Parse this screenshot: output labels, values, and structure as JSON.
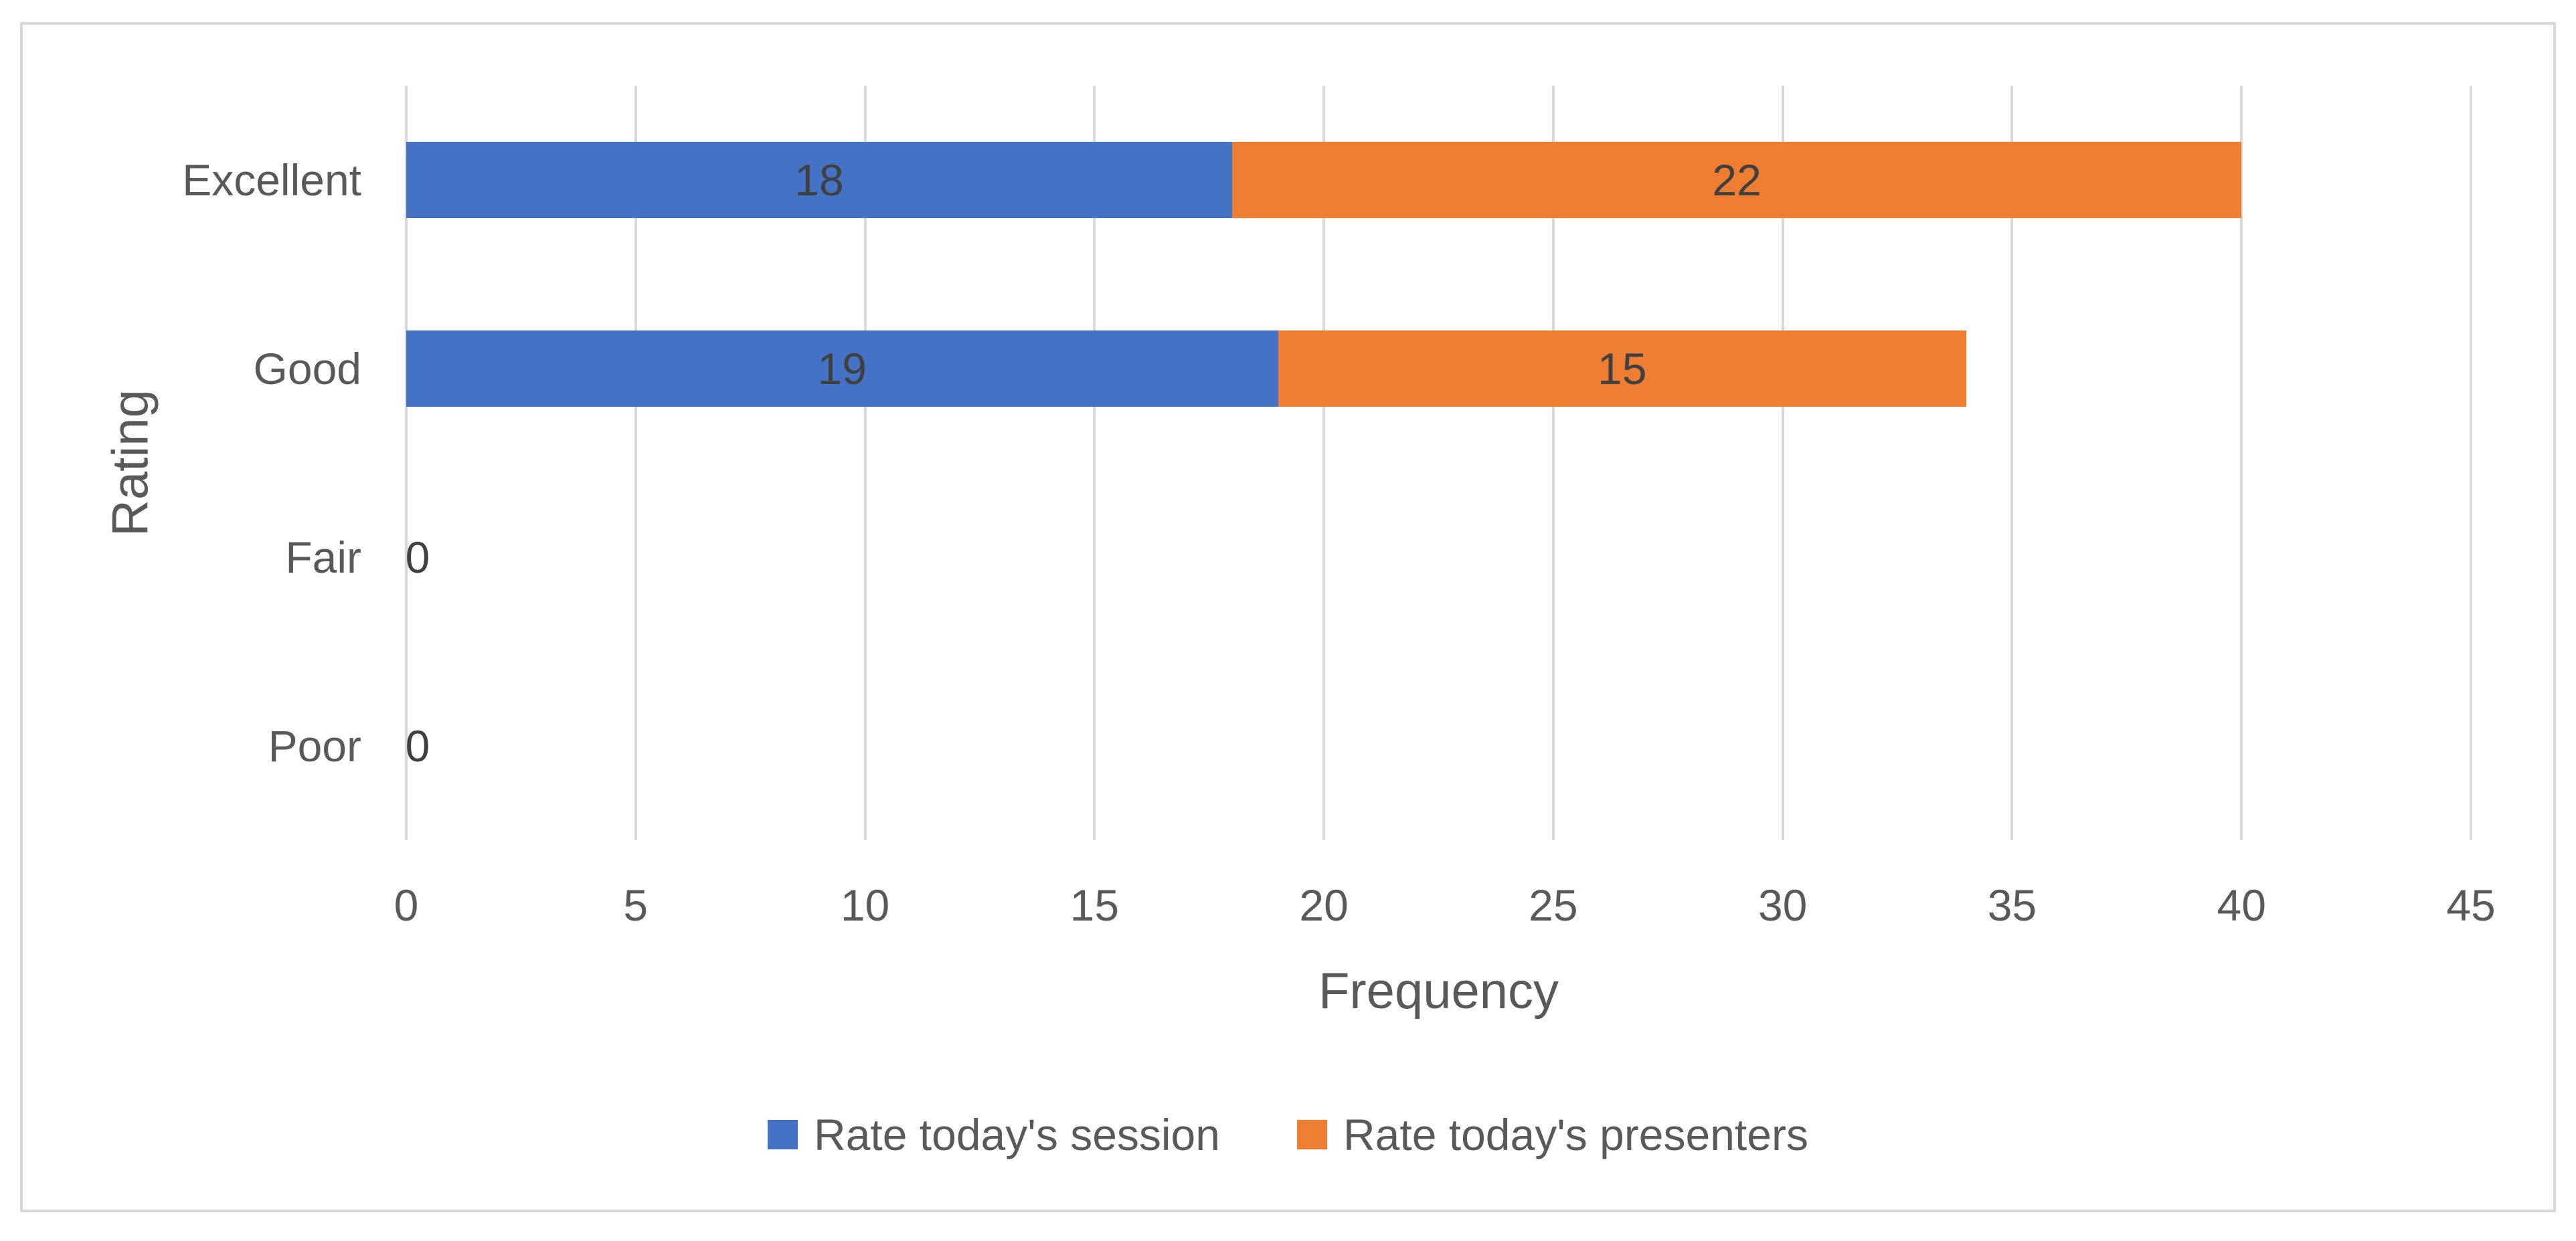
{
  "chart_data": {
    "type": "bar",
    "orientation": "horizontal",
    "stacked": true,
    "title": "",
    "xlabel": "Frequency",
    "ylabel": "Rating",
    "categories": [
      "Excellent",
      "Good",
      "Fair",
      "Poor"
    ],
    "series": [
      {
        "name": "Rate today's session",
        "color": "#4472C4",
        "values": [
          18,
          19,
          0,
          0
        ]
      },
      {
        "name": "Rate today's presenters",
        "color": "#ED7D31",
        "values": [
          22,
          15,
          0,
          0
        ]
      }
    ],
    "stack_totals": [
      40,
      34,
      0,
      0
    ],
    "data_labels_visible": true,
    "zero_value_label": "0",
    "xlim": [
      0,
      45
    ],
    "xticks": [
      0,
      5,
      10,
      15,
      20,
      25,
      30,
      35,
      40,
      45
    ],
    "grid": true,
    "legend_position": "bottom"
  },
  "colors": {
    "gridline": "#D9D9D9",
    "chart_border": "#D9D9D9",
    "axis_text": "#595959",
    "data_label_text": "#404040",
    "background": "#FFFFFF"
  }
}
